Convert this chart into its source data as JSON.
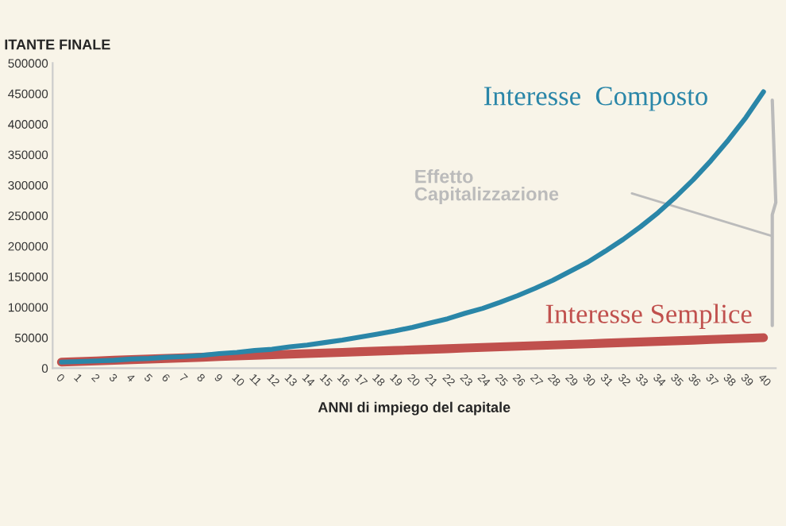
{
  "chart_data": {
    "type": "line",
    "ylabel": "ITANTE FINALE",
    "xlabel": "ANNI di impiego del capitale",
    "categories": [
      "0",
      "1",
      "2",
      "3",
      "4",
      "5",
      "6",
      "7",
      "8",
      "9",
      "10",
      "11",
      "12",
      "13",
      "14",
      "15",
      "16",
      "17",
      "18",
      "19",
      "20",
      "21",
      "22",
      "23",
      "24",
      "25",
      "26",
      "27",
      "28",
      "29",
      "30",
      "31",
      "32",
      "33",
      "34",
      "35",
      "36",
      "37",
      "38",
      "39",
      "40"
    ],
    "series": [
      {
        "name": "Interesse  Composto",
        "color": "#2a86a8",
        "values": [
          10000,
          11000,
          12000,
          13000,
          15000,
          16000,
          18000,
          19000,
          21000,
          24000,
          26000,
          29000,
          31000,
          35000,
          38000,
          42000,
          46000,
          51000,
          56000,
          61000,
          67000,
          74000,
          81000,
          90000,
          98000,
          108000,
          119000,
          131000,
          144000,
          159000,
          174000,
          192000,
          211000,
          232000,
          255000,
          281000,
          309000,
          340000,
          374000,
          411000,
          453000
        ]
      },
      {
        "name": "Interesse Semplice",
        "color": "#c0504d",
        "values": [
          10000,
          11000,
          12000,
          13000,
          14000,
          15000,
          16000,
          17000,
          18000,
          19000,
          20000,
          21000,
          22000,
          23000,
          24000,
          25000,
          26000,
          27000,
          28000,
          29000,
          30000,
          31000,
          32000,
          33000,
          34000,
          35000,
          36000,
          37000,
          38000,
          39000,
          40000,
          41000,
          42000,
          43000,
          44000,
          45000,
          46000,
          47000,
          48000,
          49000,
          50000
        ]
      }
    ],
    "ylim": [
      0,
      500000
    ],
    "yticks": [
      0,
      50000,
      100000,
      150000,
      200000,
      250000,
      300000,
      350000,
      400000,
      450000,
      500000
    ],
    "annotations": [
      "Effetto\nCapitalizzazione"
    ],
    "grid": false,
    "legend": false,
    "marker": "none",
    "line_style": "solid"
  }
}
